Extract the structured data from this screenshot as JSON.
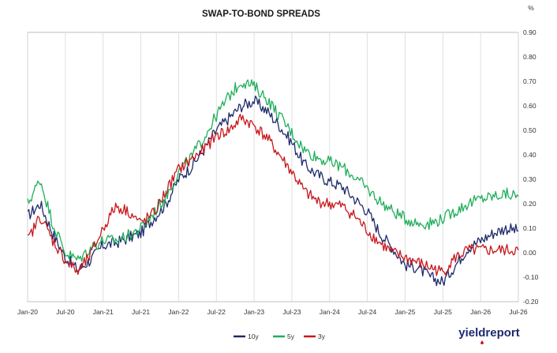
{
  "chart_data": {
    "type": "line",
    "title": "SWAP-TO-BOND SPREADS",
    "ylabel": "%",
    "xlabel": "",
    "ylim": [
      -0.2,
      0.9
    ],
    "yticks": [
      -0.2,
      -0.1,
      0.0,
      0.1,
      0.2,
      0.3,
      0.4,
      0.5,
      0.6,
      0.7,
      0.8,
      0.9
    ],
    "ytick_labels": [
      "-0.20",
      "-0.10",
      "0.00",
      "0.10",
      "0.20",
      "0.30",
      "0.40",
      "0.50",
      "0.60",
      "0.70",
      "0.80",
      "0.90"
    ],
    "xlim": [
      "2020-01",
      "2026-07"
    ],
    "xtick_labels": [
      "Jan-20",
      "Jul-20",
      "Jan-21",
      "Jul-21",
      "Jan-22",
      "Jul-22",
      "Jan-23",
      "Jul-23",
      "Jan-24",
      "Jul-24",
      "Jan-25",
      "Jul-25",
      "Jan-26",
      "Jul-26"
    ],
    "grid": "vertical",
    "legend_position": "bottom",
    "series": [
      {
        "name": "10y",
        "color": "#1f2a6b",
        "x": [
          "2020-01",
          "2020-03",
          "2020-05",
          "2020-07",
          "2020-09",
          "2020-11",
          "2021-01",
          "2021-03",
          "2021-05",
          "2021-07",
          "2021-09",
          "2021-11",
          "2022-01",
          "2022-03",
          "2022-05",
          "2022-07",
          "2022-09",
          "2022-11",
          "2023-01",
          "2023-03",
          "2023-05",
          "2023-07",
          "2023-09",
          "2023-11",
          "2024-01",
          "2024-03",
          "2024-05",
          "2024-07",
          "2024-09",
          "2024-11",
          "2025-01",
          "2025-03",
          "2025-05",
          "2025-07",
          "2025-09",
          "2025-11",
          "2026-01",
          "2026-03",
          "2026-05",
          "2026-07"
        ],
        "values": [
          0.15,
          0.2,
          0.08,
          -0.02,
          -0.07,
          -0.03,
          0.03,
          0.04,
          0.06,
          0.08,
          0.14,
          0.2,
          0.3,
          0.35,
          0.42,
          0.5,
          0.55,
          0.6,
          0.62,
          0.58,
          0.52,
          0.45,
          0.36,
          0.32,
          0.29,
          0.27,
          0.22,
          0.17,
          0.08,
          0.02,
          -0.05,
          -0.06,
          -0.1,
          -0.12,
          -0.05,
          0.02,
          0.05,
          0.08,
          0.1,
          0.09
        ]
      },
      {
        "name": "5y",
        "color": "#1fae5a",
        "x": [
          "2020-01",
          "2020-03",
          "2020-05",
          "2020-07",
          "2020-09",
          "2020-11",
          "2021-01",
          "2021-03",
          "2021-05",
          "2021-07",
          "2021-09",
          "2021-11",
          "2022-01",
          "2022-03",
          "2022-05",
          "2022-07",
          "2022-09",
          "2022-11",
          "2023-01",
          "2023-03",
          "2023-05",
          "2023-07",
          "2023-09",
          "2023-11",
          "2024-01",
          "2024-03",
          "2024-05",
          "2024-07",
          "2024-09",
          "2024-11",
          "2025-01",
          "2025-03",
          "2025-05",
          "2025-07",
          "2025-09",
          "2025-11",
          "2026-01",
          "2026-03",
          "2026-05",
          "2026-07"
        ],
        "values": [
          0.2,
          0.3,
          0.12,
          0.0,
          -0.03,
          0.02,
          0.05,
          0.05,
          0.07,
          0.1,
          0.16,
          0.23,
          0.33,
          0.39,
          0.47,
          0.56,
          0.64,
          0.7,
          0.68,
          0.63,
          0.56,
          0.49,
          0.42,
          0.39,
          0.37,
          0.35,
          0.31,
          0.26,
          0.21,
          0.17,
          0.14,
          0.12,
          0.12,
          0.14,
          0.17,
          0.2,
          0.22,
          0.23,
          0.24,
          0.23
        ]
      },
      {
        "name": "3y",
        "color": "#c8171c",
        "x": [
          "2020-01",
          "2020-03",
          "2020-05",
          "2020-07",
          "2020-09",
          "2020-11",
          "2021-01",
          "2021-03",
          "2021-05",
          "2021-07",
          "2021-09",
          "2021-11",
          "2022-01",
          "2022-03",
          "2022-05",
          "2022-07",
          "2022-09",
          "2022-11",
          "2023-01",
          "2023-03",
          "2023-05",
          "2023-07",
          "2023-09",
          "2023-11",
          "2024-01",
          "2024-03",
          "2024-05",
          "2024-07",
          "2024-09",
          "2024-11",
          "2025-01",
          "2025-03",
          "2025-05",
          "2025-07",
          "2025-09",
          "2025-11",
          "2026-01",
          "2026-03",
          "2026-05",
          "2026-07"
        ],
        "values": [
          0.05,
          0.15,
          0.05,
          -0.03,
          -0.08,
          -0.01,
          0.1,
          0.19,
          0.17,
          0.12,
          0.16,
          0.25,
          0.34,
          0.38,
          0.42,
          0.48,
          0.5,
          0.55,
          0.52,
          0.47,
          0.4,
          0.33,
          0.25,
          0.21,
          0.2,
          0.19,
          0.15,
          0.09,
          0.04,
          0.0,
          -0.02,
          -0.04,
          -0.06,
          -0.08,
          -0.02,
          0.01,
          0.01,
          0.01,
          0.01,
          0.01
        ]
      }
    ]
  },
  "branding": {
    "logo_text": "yieldreport"
  },
  "colors": {
    "background": "#ffffff",
    "gridline": "#d9d9d9",
    "axis": "#bfbfbf"
  }
}
